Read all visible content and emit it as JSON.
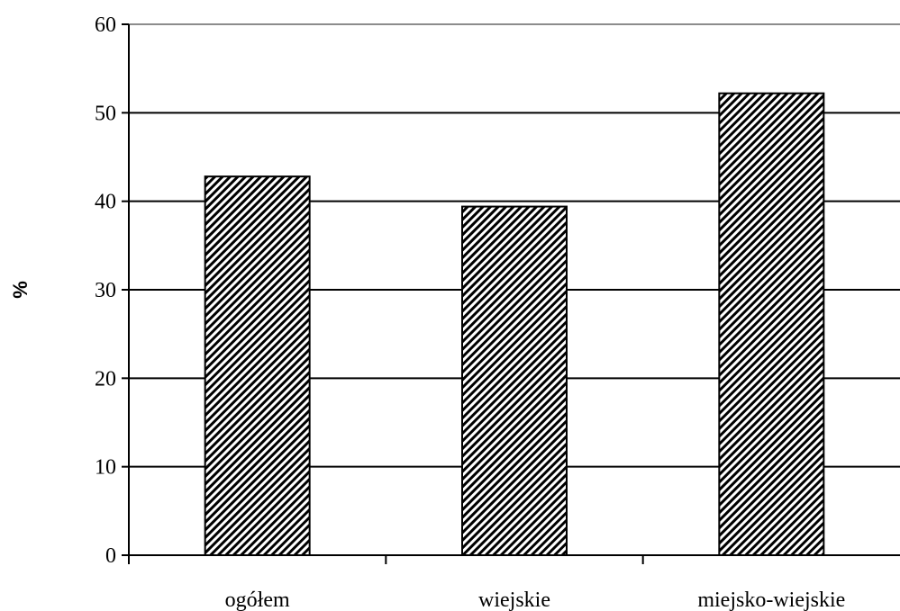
{
  "chart_data": {
    "type": "bar",
    "categories": [
      "ogółem",
      "wiejskie",
      "miejsko-wiejskie"
    ],
    "values": [
      42.8,
      39.4,
      52.2
    ],
    "title": "",
    "xlabel": "",
    "ylabel": "%",
    "ylim": [
      0,
      60
    ],
    "yticks": [
      0,
      10,
      20,
      30,
      40,
      50,
      60
    ],
    "grid": true,
    "bar_fill": "diagonal-hatch",
    "colors": {
      "bar_line": "#000000",
      "bar_background": "#ffffff",
      "grid": "#000000"
    }
  }
}
